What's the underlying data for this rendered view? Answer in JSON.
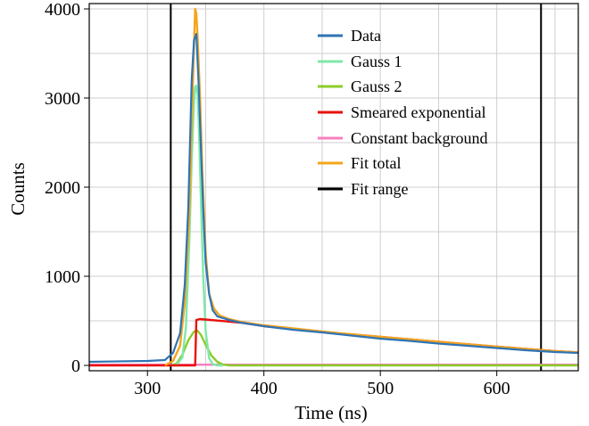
{
  "chart_data": {
    "type": "line",
    "xlabel": "Time (ns)",
    "ylabel": "Counts",
    "xlim": [
      250,
      670
    ],
    "ylim": [
      -60,
      4060
    ],
    "xticks": [
      "300",
      "400",
      "500",
      "600"
    ],
    "xtick_values": [
      300,
      400,
      500,
      600
    ],
    "yticks": [
      "0",
      "1000",
      "2000",
      "3000",
      "4000"
    ],
    "ytick_values": [
      0,
      1000,
      2000,
      3000,
      4000
    ],
    "grid": true,
    "legend_position": "top-right",
    "fit_range": [
      320,
      638
    ],
    "colors": {
      "data": "#2f74b5",
      "gauss1": "#7fe8a8",
      "gauss2": "#8ccc2c",
      "smeared_exponential": "#e8120c",
      "constant_background": "#f77fbf",
      "fit_total": "#f5a41c",
      "fit_range": "#000000"
    },
    "series": [
      {
        "name": "Data",
        "x": [
          250,
          300,
          315,
          322,
          328,
          332,
          335,
          338,
          340,
          342,
          344,
          346,
          348,
          350,
          353,
          356,
          360,
          370,
          380,
          400,
          425,
          450,
          475,
          500,
          525,
          550,
          575,
          600,
          625,
          650,
          670
        ],
        "y": [
          40,
          50,
          60,
          140,
          360,
          900,
          1750,
          3200,
          3650,
          3720,
          3150,
          2400,
          1700,
          1150,
          800,
          620,
          550,
          510,
          480,
          440,
          400,
          370,
          335,
          300,
          275,
          245,
          220,
          195,
          170,
          150,
          140
        ]
      },
      {
        "name": "Gauss 1",
        "x": [
          320,
          325,
          330,
          333,
          336,
          338,
          340,
          341,
          342,
          343,
          344,
          346,
          348,
          350,
          353,
          356,
          360,
          365
        ],
        "y": [
          0,
          5,
          90,
          420,
          1400,
          2300,
          2950,
          3120,
          3140,
          3050,
          2750,
          1800,
          950,
          380,
          80,
          15,
          0,
          0
        ]
      },
      {
        "name": "Gauss 2",
        "x": [
          320,
          325,
          330,
          335,
          340,
          343,
          346,
          350,
          355,
          360,
          365,
          370,
          670
        ],
        "y": [
          0,
          20,
          120,
          280,
          380,
          390,
          340,
          230,
          110,
          40,
          10,
          0,
          0
        ]
      },
      {
        "name": "Smeared exponential",
        "x": [
          250,
          341,
          342,
          345,
          380,
          400,
          450,
          500,
          550,
          600,
          650,
          670
        ],
        "y": [
          0,
          0,
          510,
          520,
          480,
          440,
          375,
          320,
          265,
          210,
          160,
          145
        ]
      },
      {
        "name": "Constant background",
        "x": [
          250,
          670
        ],
        "y": [
          8,
          8
        ]
      },
      {
        "name": "Fit total",
        "x": [
          315,
          322,
          328,
          332,
          336,
          338,
          340,
          341,
          342,
          343,
          345,
          347,
          350,
          353,
          357,
          362,
          370,
          380,
          400,
          450,
          500,
          550,
          600,
          650,
          670
        ],
        "y": [
          0,
          50,
          220,
          700,
          1700,
          2700,
          3600,
          4000,
          3950,
          3700,
          3050,
          2200,
          1250,
          800,
          640,
          560,
          520,
          490,
          450,
          380,
          320,
          265,
          210,
          160,
          145
        ]
      }
    ]
  }
}
